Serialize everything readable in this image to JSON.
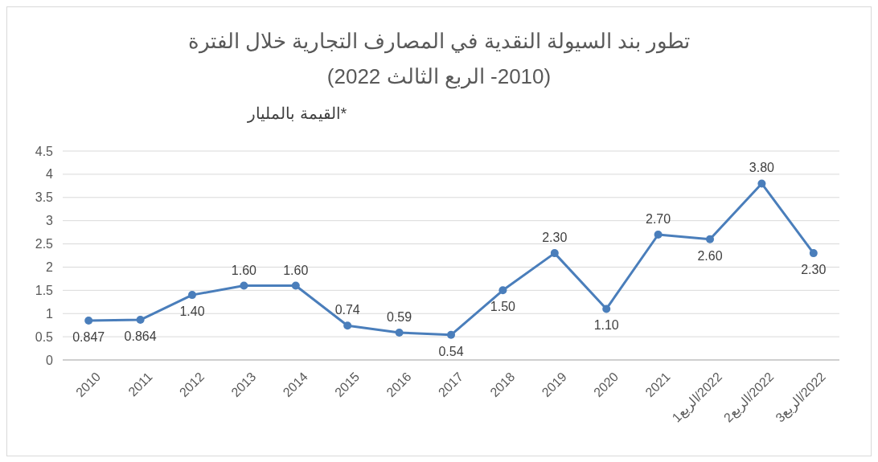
{
  "chart_data": {
    "type": "line",
    "title": "تطور بند السيولة النقدية في المصارف التجارية خلال الفترة",
    "subtitle": "(2010- الربع الثالث 2022)",
    "annotations": [
      "*القيمة بالمليار"
    ],
    "categories": [
      "2010",
      "2011",
      "2012",
      "2013",
      "2014",
      "2015",
      "2016",
      "2017",
      "2018",
      "2019",
      "2020",
      "2021",
      "2022/الربع1",
      "2022/الربع2",
      "2022/الربع3"
    ],
    "series": [
      {
        "color": "#4a7ebb",
        "values": [
          0.847,
          0.864,
          1.4,
          1.6,
          1.6,
          0.74,
          0.59,
          0.54,
          1.5,
          2.3,
          1.1,
          2.7,
          2.6,
          3.8,
          2.3
        ],
        "value_labels": [
          "0.847",
          "0.864",
          "1.40",
          "1.60",
          "1.60",
          "0.74",
          "0.59",
          "0.54",
          "1.50",
          "2.30",
          "1.10",
          "2.70",
          "2.60",
          "3.80",
          "2.30"
        ]
      }
    ],
    "ylim": [
      0,
      4.5
    ],
    "yticks": [
      0,
      0.5,
      1,
      1.5,
      2,
      2.5,
      3,
      3.5,
      4,
      4.5
    ],
    "grid": "y",
    "marker": "circle",
    "line_style": "solid"
  }
}
